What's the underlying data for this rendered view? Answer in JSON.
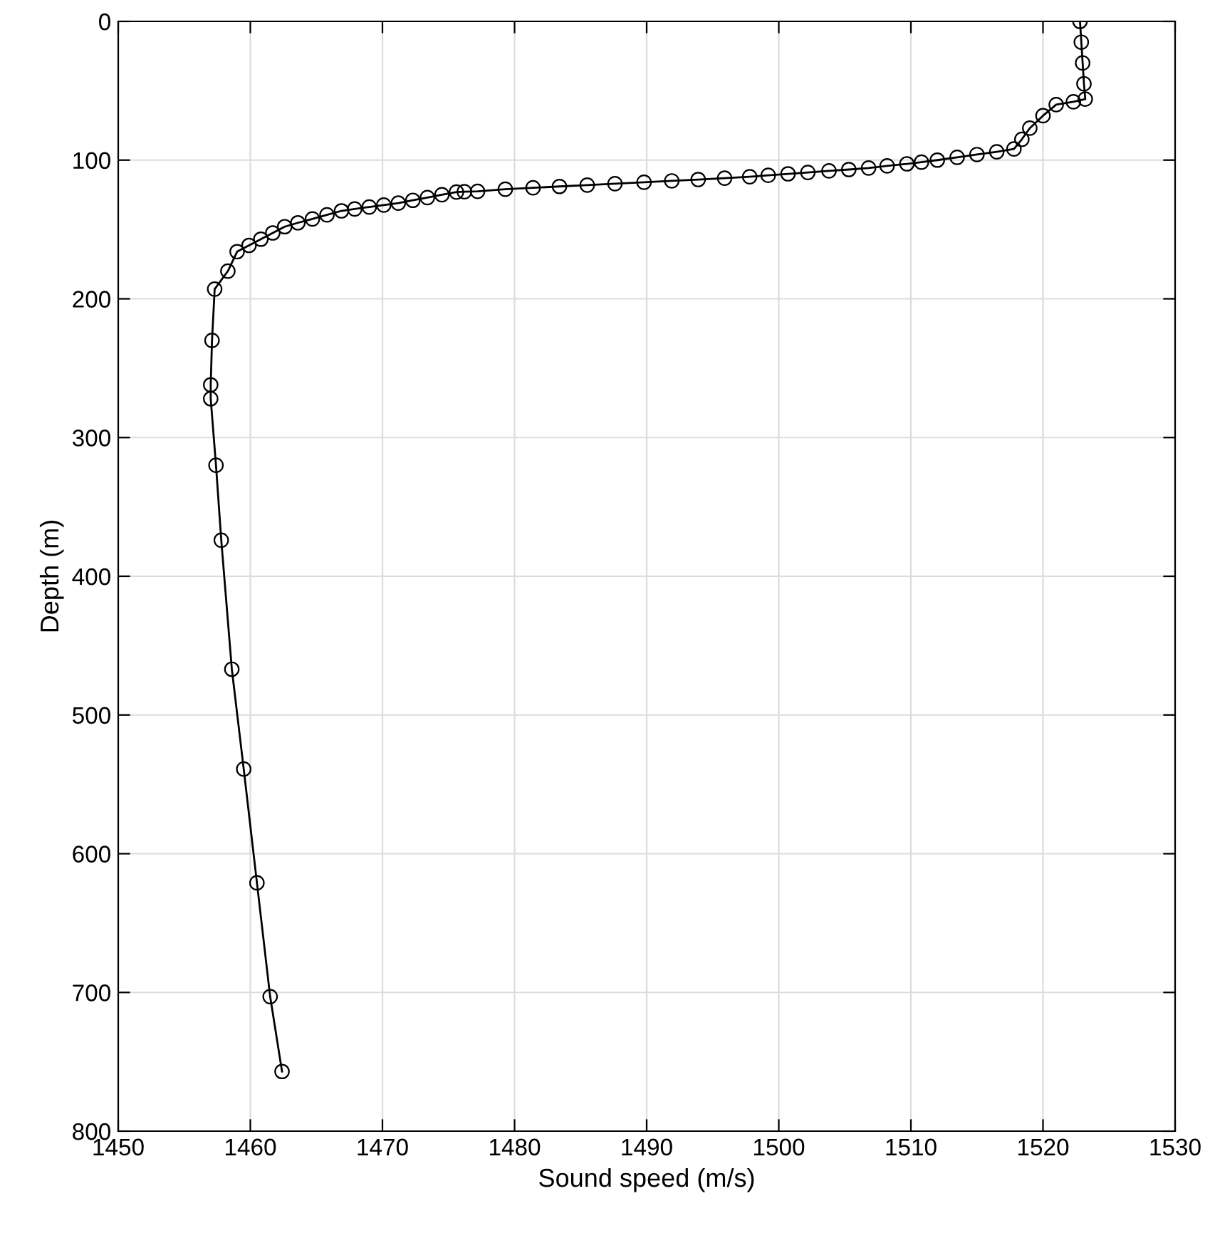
{
  "chart_data": {
    "type": "line",
    "xlabel": "Sound speed (m/s)",
    "ylabel": "Depth (m)",
    "xlim": [
      1450,
      1530
    ],
    "xticks": [
      1450,
      1460,
      1470,
      1480,
      1490,
      1500,
      1510,
      1520,
      1530
    ],
    "ylim": [
      800,
      0
    ],
    "yticks": [
      0,
      100,
      200,
      300,
      400,
      500,
      600,
      700,
      800
    ],
    "grid": true,
    "marker": "circle",
    "line_style": "solid",
    "series": [
      {
        "color": "#000000",
        "x": [
          1522.8,
          1522.9,
          1523.0,
          1523.1,
          1523.2,
          1522.3,
          1521.0,
          1520.0,
          1519.0,
          1518.4,
          1517.8,
          1516.5,
          1515.0,
          1513.5,
          1512.0,
          1510.8,
          1509.7,
          1508.2,
          1506.8,
          1505.3,
          1503.8,
          1502.2,
          1500.7,
          1499.2,
          1497.8,
          1495.9,
          1493.9,
          1491.9,
          1489.8,
          1487.6,
          1485.5,
          1483.4,
          1481.4,
          1479.3,
          1477.2,
          1476.2,
          1475.6,
          1474.5,
          1473.4,
          1472.3,
          1471.2,
          1470.1,
          1469.0,
          1467.9,
          1466.9,
          1465.8,
          1464.7,
          1463.6,
          1462.6,
          1461.7,
          1460.8,
          1459.9,
          1459.0,
          1458.3,
          1457.3,
          1457.1,
          1457.0,
          1457.0,
          1457.4,
          1457.8,
          1458.6,
          1459.5,
          1460.5,
          1461.5,
          1462.4
        ],
        "values": [
          0,
          15,
          30,
          45,
          56,
          58,
          60,
          68,
          77,
          85,
          92,
          94,
          96,
          98,
          100,
          101.5,
          102.7,
          104.2,
          105.7,
          106.8,
          107.8,
          108.9,
          109.9,
          111,
          112,
          113,
          114,
          115,
          116,
          117,
          118,
          119,
          120,
          121,
          122.5,
          122.8,
          123,
          125,
          127,
          129,
          131,
          132.4,
          133.8,
          135.2,
          136.6,
          139.5,
          142.4,
          145.2,
          148,
          152.5,
          157,
          161.5,
          166,
          180,
          193,
          230,
          262,
          272,
          320,
          374,
          467,
          539,
          621,
          703,
          757
        ]
      }
    ]
  }
}
